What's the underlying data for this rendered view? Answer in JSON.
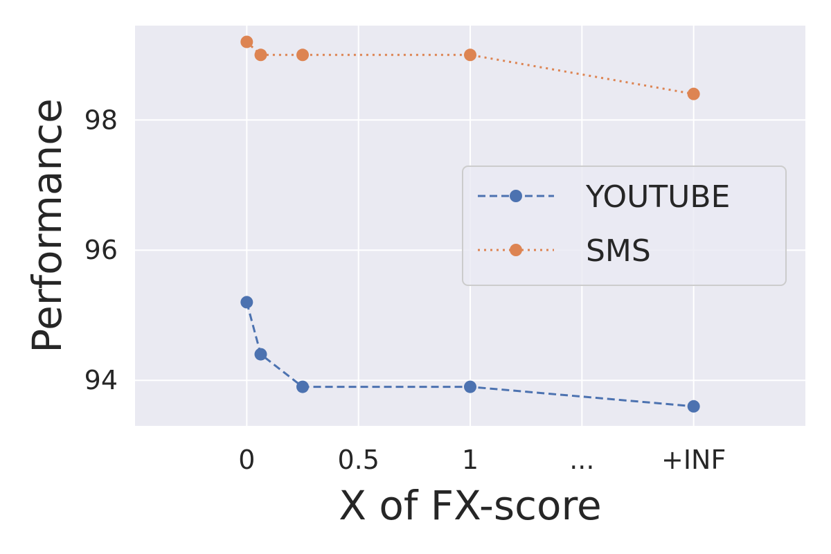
{
  "chart_data": {
    "type": "line",
    "xlabel": "X of FX-score",
    "ylabel": "Performance",
    "x_ticks": [
      {
        "value": 0,
        "label": "0"
      },
      {
        "value": 0.5,
        "label": "0.5"
      },
      {
        "value": 1,
        "label": "1"
      },
      {
        "value": 1.5,
        "label": "..."
      },
      {
        "value": 2,
        "label": "+INF"
      }
    ],
    "y_ticks": [
      {
        "value": 94,
        "label": "94"
      },
      {
        "value": 96,
        "label": "96"
      },
      {
        "value": 98,
        "label": "98"
      }
    ],
    "xlim": [
      -0.5,
      2.5
    ],
    "ylim": [
      93.3,
      99.45
    ],
    "grid": true,
    "legend_position": "right",
    "series": [
      {
        "name": "YOUTUBE",
        "color": "#4c72b0",
        "linestyle": "dashed",
        "marker": "circle",
        "points": [
          {
            "x": 0,
            "y": 95.2
          },
          {
            "x": 0.0625,
            "y": 94.4
          },
          {
            "x": 0.25,
            "y": 93.9
          },
          {
            "x": 1,
            "y": 93.9
          },
          {
            "x": 2,
            "y": 93.6
          }
        ]
      },
      {
        "name": "SMS",
        "color": "#dd8452",
        "linestyle": "dotted",
        "marker": "circle",
        "points": [
          {
            "x": 0,
            "y": 99.2
          },
          {
            "x": 0.0625,
            "y": 99.0
          },
          {
            "x": 0.25,
            "y": 99.0
          },
          {
            "x": 1,
            "y": 99.0
          },
          {
            "x": 2,
            "y": 98.4
          }
        ]
      }
    ]
  }
}
